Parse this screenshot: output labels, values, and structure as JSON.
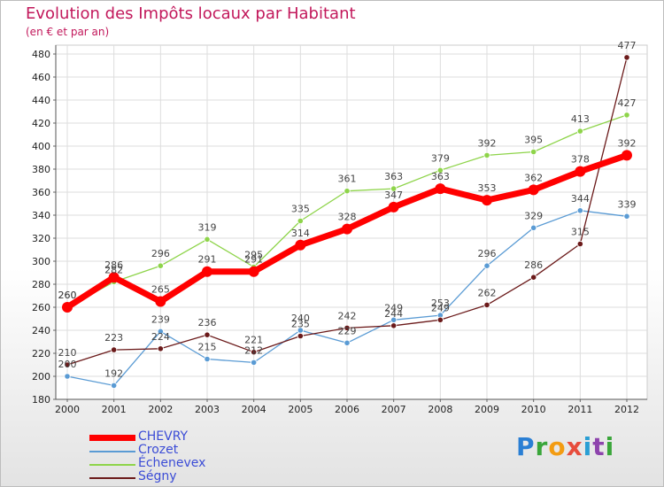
{
  "chart_data": {
    "type": "line",
    "title": "Evolution des Impôts locaux par Habitant",
    "subtitle": "(en € et par an)",
    "x": [
      "2000",
      "2001",
      "2002",
      "2003",
      "2004",
      "2005",
      "2006",
      "2007",
      "2008",
      "2009",
      "2010",
      "2011",
      "2012"
    ],
    "ylim": [
      180,
      480
    ],
    "yticks": [
      180,
      200,
      220,
      240,
      260,
      280,
      300,
      320,
      340,
      360,
      380,
      400,
      420,
      440,
      460,
      480
    ],
    "grid": true,
    "legend_position": "bottom-left",
    "series": [
      {
        "name": "CHEVRY",
        "color": "#ff0000",
        "values": [
          260,
          286,
          265,
          291,
          291,
          314,
          328,
          347,
          363,
          353,
          362,
          378,
          392
        ]
      },
      {
        "name": "Crozet",
        "color": "#5a9bd4",
        "values": [
          200,
          192,
          239,
          215,
          212,
          240,
          229,
          249,
          253,
          296,
          329,
          344,
          339
        ]
      },
      {
        "name": "Échenevex",
        "color": "#8ed44a",
        "values": [
          260,
          282,
          296,
          319,
          295,
          335,
          361,
          363,
          379,
          392,
          395,
          413,
          427
        ]
      },
      {
        "name": "Ségny",
        "color": "#6b1a1a",
        "values": [
          210,
          223,
          224,
          236,
          221,
          235,
          242,
          244,
          249,
          262,
          286,
          315,
          477
        ]
      }
    ]
  },
  "brand": {
    "letters": [
      {
        "ch": "P",
        "color": "#2a7fd4"
      },
      {
        "ch": "r",
        "color": "#3aa63a"
      },
      {
        "ch": "o",
        "color": "#f39c12"
      },
      {
        "ch": "x",
        "color": "#e74c3c"
      },
      {
        "ch": "i",
        "color": "#2a9fd4"
      },
      {
        "ch": "t",
        "color": "#8e44ad"
      },
      {
        "ch": "i",
        "color": "#3aa63a"
      }
    ]
  }
}
